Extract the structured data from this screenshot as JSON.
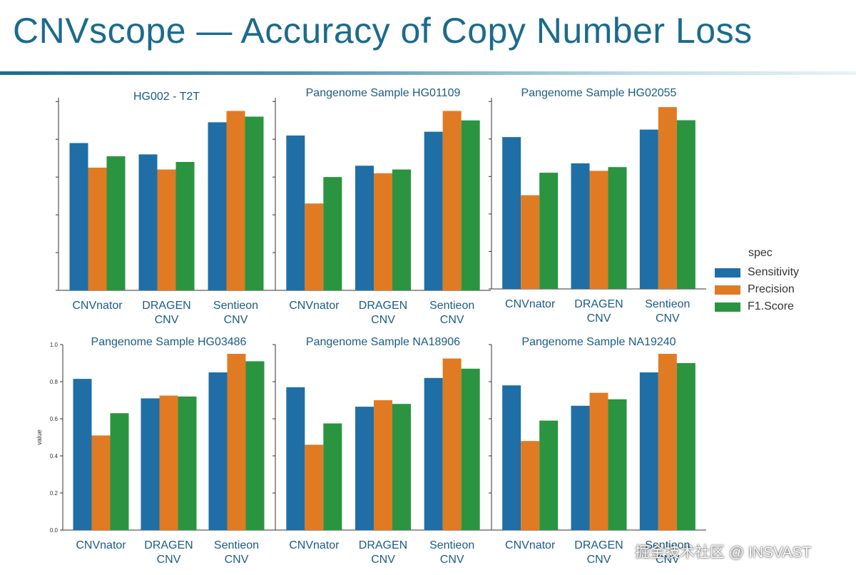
{
  "title": "CNVscope — Accuracy of Copy Number Loss",
  "legend": {
    "title": "spec",
    "items": [
      {
        "label": "Sensitivity",
        "color": "#1f6ea6"
      },
      {
        "label": "Precision",
        "color": "#e07b24"
      },
      {
        "label": "F1.Score",
        "color": "#2a9440"
      }
    ]
  },
  "watermark": "掘金技术社区 @ INSVAST",
  "chart_data": [
    {
      "type": "bar",
      "title": "HG002 - T2T",
      "categories": [
        "CNVnator",
        "DRAGEN CNV",
        "Sentieon CNV"
      ],
      "series": [
        {
          "name": "Sensitivity",
          "values": [
            0.78,
            0.72,
            0.89
          ]
        },
        {
          "name": "Precision",
          "values": [
            0.65,
            0.64,
            0.95
          ]
        },
        {
          "name": "F1.Score",
          "values": [
            0.71,
            0.68,
            0.92
          ]
        }
      ],
      "ylim": [
        0,
        1.02
      ],
      "y_ticks_labeled": false
    },
    {
      "type": "bar",
      "title": "Pangenome Sample HG01109",
      "categories": [
        "CNVnator",
        "DRAGEN CNV",
        "Sentieon CNV"
      ],
      "series": [
        {
          "name": "Sensitivity",
          "values": [
            0.82,
            0.66,
            0.84
          ]
        },
        {
          "name": "Precision",
          "values": [
            0.46,
            0.62,
            0.95
          ]
        },
        {
          "name": "F1.Score",
          "values": [
            0.6,
            0.64,
            0.9
          ]
        }
      ],
      "ylim": [
        0,
        1.02
      ],
      "y_ticks_labeled": false
    },
    {
      "type": "bar",
      "title": "Pangenome Sample HG02055",
      "categories": [
        "CNVnator",
        "DRAGEN CNV",
        "Sentieon CNV"
      ],
      "series": [
        {
          "name": "Sensitivity",
          "values": [
            0.81,
            0.67,
            0.85
          ]
        },
        {
          "name": "Precision",
          "values": [
            0.5,
            0.63,
            0.97
          ]
        },
        {
          "name": "F1.Score",
          "values": [
            0.62,
            0.65,
            0.9
          ]
        }
      ],
      "ylim": [
        0,
        1.02
      ],
      "y_ticks_labeled": false
    },
    {
      "type": "bar",
      "title": "Pangenome Sample HG03486",
      "ylabel": "value",
      "categories": [
        "CNVnator",
        "DRAGEN CNV",
        "Sentieon CNV"
      ],
      "series": [
        {
          "name": "Sensitivity",
          "values": [
            0.815,
            0.71,
            0.85
          ]
        },
        {
          "name": "Precision",
          "values": [
            0.51,
            0.725,
            0.95
          ]
        },
        {
          "name": "F1.Score",
          "values": [
            0.63,
            0.72,
            0.91
          ]
        }
      ],
      "ylim": [
        0,
        1.0
      ],
      "yticks": [
        "0.0",
        "0.2",
        "0.4",
        "0.6",
        "0.8",
        "1.0"
      ],
      "y_ticks_labeled": true
    },
    {
      "type": "bar",
      "title": "Pangenome Sample NA18906",
      "categories": [
        "CNVnator",
        "DRAGEN CNV",
        "Sentieon CNV"
      ],
      "series": [
        {
          "name": "Sensitivity",
          "values": [
            0.77,
            0.665,
            0.82
          ]
        },
        {
          "name": "Precision",
          "values": [
            0.46,
            0.7,
            0.925
          ]
        },
        {
          "name": "F1.Score",
          "values": [
            0.575,
            0.68,
            0.87
          ]
        }
      ],
      "ylim": [
        0,
        1.0
      ],
      "y_ticks_labeled": false
    },
    {
      "type": "bar",
      "title": "Pangenome Sample NA19240",
      "categories": [
        "CNVnator",
        "DRAGEN CNV",
        "Sentieon CNV"
      ],
      "series": [
        {
          "name": "Sensitivity",
          "values": [
            0.78,
            0.67,
            0.85
          ]
        },
        {
          "name": "Precision",
          "values": [
            0.48,
            0.74,
            0.95
          ]
        },
        {
          "name": "F1.Score",
          "values": [
            0.59,
            0.705,
            0.9
          ]
        }
      ],
      "ylim": [
        0,
        1.0
      ],
      "y_ticks_labeled": false
    }
  ]
}
